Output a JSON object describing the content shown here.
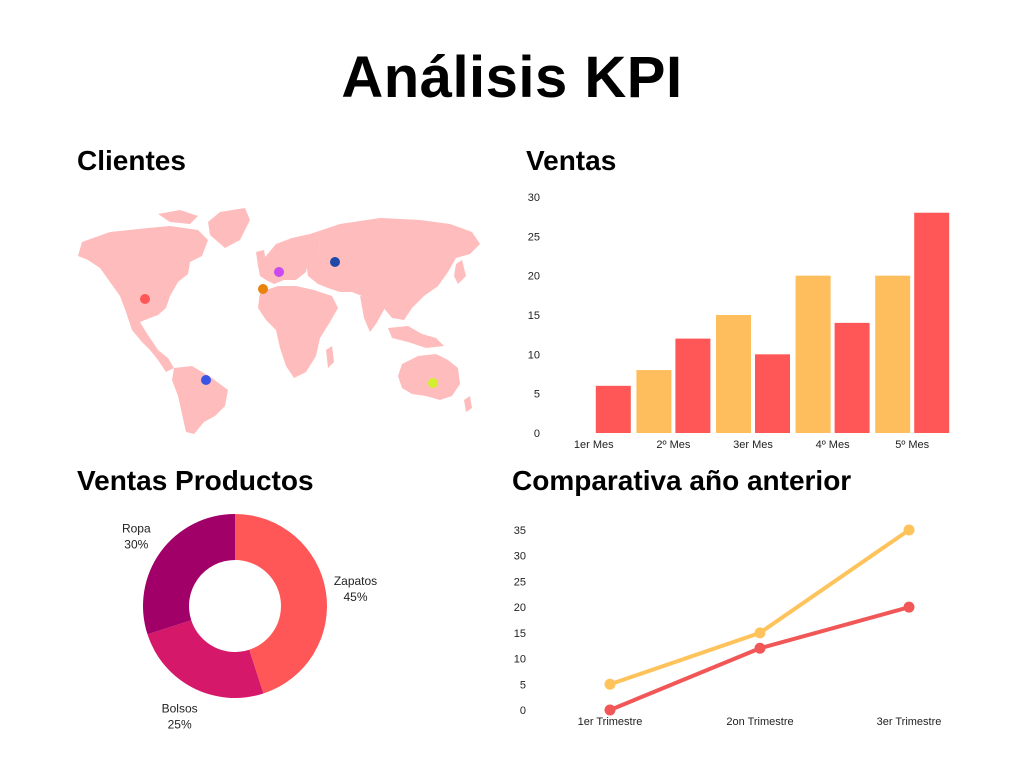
{
  "title": "Análisis KPI",
  "sections": {
    "clients": "Clientes",
    "sales": "Ventas",
    "product_sales": "Ventas Productos",
    "comparison": "Comparativa año anterior"
  },
  "colors": {
    "map_land": "#ffbcbc",
    "bar_a": "#ffbe5e",
    "bar_b": "#ff5757",
    "line_a": "#ffc35c",
    "line_b": "#f25757",
    "donut": [
      "#ff5757",
      "#d6186a",
      "#a10068"
    ]
  },
  "map_points": [
    {
      "region": "North America",
      "color": "#ff5757"
    },
    {
      "region": "Western Europe",
      "color": "#e8830c"
    },
    {
      "region": "Central Europe",
      "color": "#cb49f0"
    },
    {
      "region": "Russia",
      "color": "#1f49a8"
    },
    {
      "region": "South America",
      "color": "#3a55e6"
    },
    {
      "region": "Australia",
      "color": "#d4ef2f"
    }
  ],
  "chart_data": [
    {
      "type": "bar",
      "title": "Ventas",
      "categories": [
        "1er Mes",
        "2º Mes",
        "3er Mes",
        "4º Mes",
        "5º Mes"
      ],
      "series": [
        {
          "values": [
            0,
            8,
            15,
            20,
            20
          ],
          "color": "#ffbe5e"
        },
        {
          "values": [
            6,
            12,
            10,
            14,
            28
          ],
          "color": "#ff5757"
        }
      ],
      "ylim": [
        0,
        30
      ],
      "yticks": [
        0,
        5,
        10,
        15,
        20,
        25,
        30
      ]
    },
    {
      "type": "pie",
      "title": "Ventas Productos",
      "slices": [
        {
          "label": "Zapatos",
          "pct_label": "45%",
          "value": 45,
          "color": "#ff5757"
        },
        {
          "label": "Bolsos",
          "pct_label": "25%",
          "value": 25,
          "color": "#d6186a"
        },
        {
          "label": "Ropa",
          "pct_label": "30%",
          "value": 30,
          "color": "#a10068"
        }
      ]
    },
    {
      "type": "line",
      "title": "Comparativa año anterior",
      "categories": [
        "1er Trimestre",
        "2on Trimestre",
        "3er Trimestre"
      ],
      "series": [
        {
          "values": [
            5,
            15,
            35
          ],
          "color": "#ffc35c"
        },
        {
          "values": [
            0,
            12,
            20
          ],
          "color": "#f25757"
        }
      ],
      "ylim": [
        0,
        35
      ],
      "yticks": [
        0,
        5,
        10,
        15,
        20,
        25,
        30,
        35
      ]
    }
  ]
}
